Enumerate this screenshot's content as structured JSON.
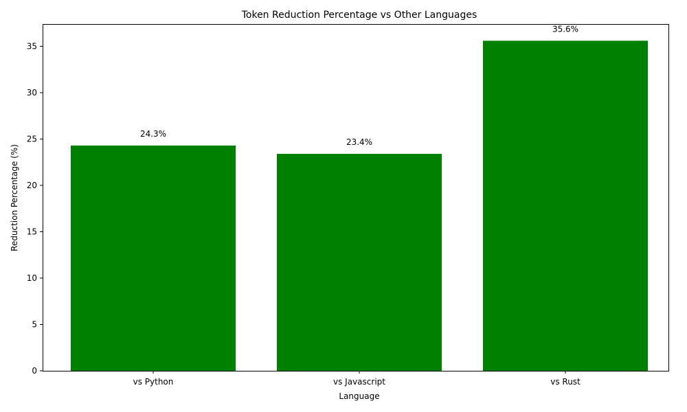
{
  "chart_data": {
    "type": "bar",
    "title": "Token Reduction Percentage vs Other Languages",
    "xlabel": "Language",
    "ylabel": "Reduction Percentage (%)",
    "categories": [
      "vs Python",
      "vs Javascript",
      "vs Rust"
    ],
    "values": [
      24.3,
      23.4,
      35.6
    ],
    "value_labels": [
      "24.3%",
      "23.4%",
      "35.6%"
    ],
    "ylim": [
      0,
      37.4
    ],
    "yticks": [
      0,
      5,
      10,
      15,
      20,
      25,
      30,
      35
    ],
    "bar_color": "#008000",
    "grid": false
  }
}
